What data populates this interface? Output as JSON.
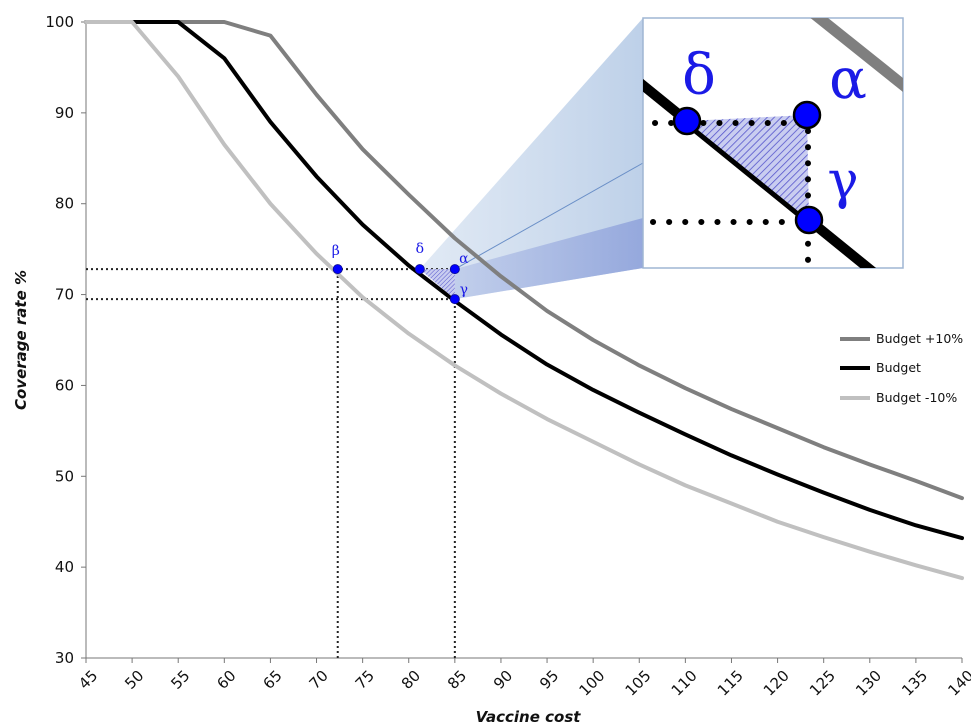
{
  "chart_data": {
    "type": "line",
    "xlabel": "Vaccine cost",
    "ylabel": "Coverage rate %",
    "xlim": [
      45,
      140
    ],
    "ylim": [
      30,
      100
    ],
    "x_ticks": [
      45,
      50,
      55,
      60,
      65,
      70,
      75,
      80,
      85,
      90,
      95,
      100,
      105,
      110,
      115,
      120,
      125,
      130,
      135,
      140
    ],
    "y_ticks": [
      30,
      40,
      50,
      60,
      70,
      80,
      90,
      100
    ],
    "grid": false,
    "legend_position": "right",
    "series": [
      {
        "name": "Budget +10%",
        "color": "#7f7f7f",
        "points": [
          [
            45,
            100
          ],
          [
            50,
            100
          ],
          [
            55,
            100
          ],
          [
            60,
            100
          ],
          [
            65,
            98.5
          ],
          [
            70,
            92
          ],
          [
            75,
            86
          ],
          [
            80,
            81
          ],
          [
            85,
            76.2
          ],
          [
            90,
            72
          ],
          [
            95,
            68.2
          ],
          [
            100,
            65
          ],
          [
            105,
            62.2
          ],
          [
            110,
            59.7
          ],
          [
            115,
            57.4
          ],
          [
            120,
            55.3
          ],
          [
            125,
            53.2
          ],
          [
            130,
            51.3
          ],
          [
            135,
            49.5
          ],
          [
            140,
            47.6
          ]
        ]
      },
      {
        "name": "Budget",
        "color": "#000000",
        "points": [
          [
            45,
            100
          ],
          [
            50,
            100
          ],
          [
            55,
            100
          ],
          [
            60,
            96
          ],
          [
            65,
            89
          ],
          [
            70,
            83
          ],
          [
            75,
            77.7
          ],
          [
            80,
            73.2
          ],
          [
            85,
            69.3
          ],
          [
            90,
            65.6
          ],
          [
            95,
            62.3
          ],
          [
            100,
            59.5
          ],
          [
            105,
            57
          ],
          [
            110,
            54.6
          ],
          [
            115,
            52.3
          ],
          [
            120,
            50.2
          ],
          [
            125,
            48.2
          ],
          [
            130,
            46.3
          ],
          [
            135,
            44.6
          ],
          [
            140,
            43.2
          ]
        ]
      },
      {
        "name": "Budget -10%",
        "color": "#c0c0c0",
        "points": [
          [
            45,
            100
          ],
          [
            50,
            100
          ],
          [
            55,
            94
          ],
          [
            60,
            86.5
          ],
          [
            65,
            80
          ],
          [
            70,
            74.5
          ],
          [
            75,
            69.7
          ],
          [
            80,
            65.7
          ],
          [
            85,
            62.2
          ],
          [
            90,
            59.1
          ],
          [
            95,
            56.3
          ],
          [
            100,
            53.8
          ],
          [
            105,
            51.3
          ],
          [
            110,
            49
          ],
          [
            115,
            47
          ],
          [
            120,
            45
          ],
          [
            125,
            43.3
          ],
          [
            130,
            41.7
          ],
          [
            135,
            40.2
          ],
          [
            140,
            38.8
          ]
        ]
      }
    ],
    "annotations": {
      "points": [
        {
          "label": "β",
          "x": 72.3,
          "y": 72.8
        },
        {
          "label": "δ",
          "x": 81.2,
          "y": 72.8
        },
        {
          "label": "α",
          "x": 85,
          "y": 72.8
        },
        {
          "label": "γ",
          "x": 85,
          "y": 69.5
        }
      ],
      "guide_lines": [
        {
          "from": [
            45,
            72.8
          ],
          "to": [
            85,
            72.8
          ]
        },
        {
          "from": [
            45,
            69.5
          ],
          "to": [
            85,
            69.5
          ]
        },
        {
          "from": [
            72.3,
            30
          ],
          "to": [
            72.3,
            72.8
          ]
        },
        {
          "from": [
            85,
            30
          ],
          "to": [
            85,
            69.5
          ]
        }
      ],
      "inset": {
        "description_labels": [
          "δ",
          "α",
          "γ"
        ],
        "marker_color": "#0000ff",
        "hatch_color": "#5555cc"
      }
    }
  }
}
